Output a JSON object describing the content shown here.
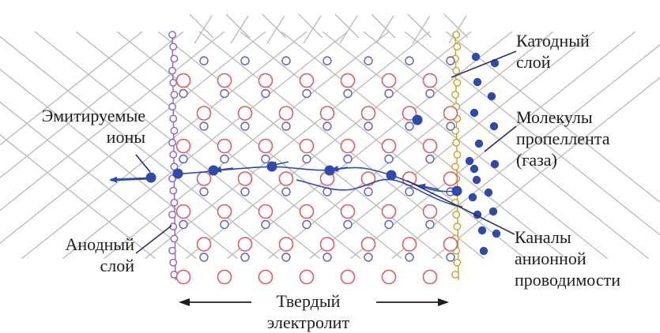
{
  "labels": {
    "cathode_layer": "Катодный\nслой",
    "propellant_molecules": "Молекулы\nпропеллента\n(газа)",
    "emitted_ions": "Эмитируемые\nионы",
    "anode_layer": "Анодный\nслой",
    "anion_channels": "Каналы\nанионной\nпроводимости",
    "solid_electrolyte": "Твердый\nэлектролит"
  },
  "colors": {
    "anion_lattice_ion": "#e05b62",
    "cation_lattice_ion": "#5a5fc2",
    "mobile_ion": "#2f4aa8",
    "anode_chain": "#8a64b9",
    "cathode_chain": "#c7a227",
    "bond": "#b8b8b8",
    "leader": "#2a2f66",
    "text": "#1e1e1e"
  },
  "icons": {
    "anode_bead": "purple-ring",
    "cathode_bead": "gold-ring",
    "large_lattice_site": "red-ring",
    "small_lattice_site": "blue-ring",
    "mobile_ion": "filled-blue-dot",
    "gas_molecule": "filled-blue-dot"
  }
}
